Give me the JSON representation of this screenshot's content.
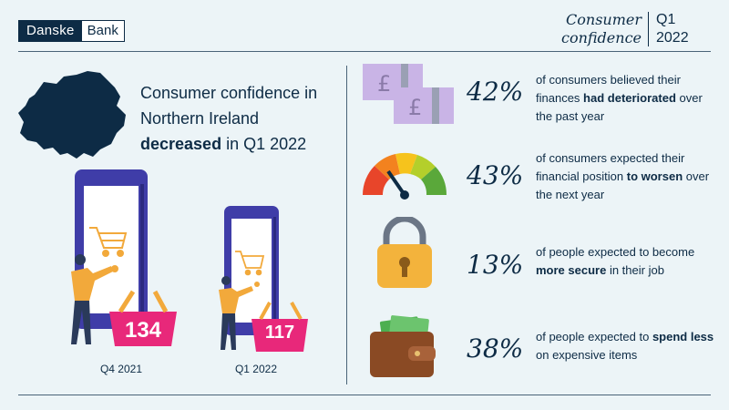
{
  "header": {
    "logo_left": "Danske",
    "logo_right": "Bank",
    "title_line1": "Consumer",
    "title_line2": "confidence",
    "period_line1": "Q1",
    "period_line2": "2022"
  },
  "headline": {
    "line1": "Consumer confidence in",
    "line2": "Northern Ireland",
    "bold": "decreased",
    "rest": " in Q1 2022"
  },
  "comparison": [
    {
      "period": "Q4 2021",
      "value": "134"
    },
    {
      "period": "Q1 2022",
      "value": "117"
    }
  ],
  "stats": [
    {
      "percent": "42%",
      "pre": "of consumers believed their finances ",
      "bold": "had deteriorated",
      "post": " over the past year",
      "icon": "pound-notes-icon"
    },
    {
      "percent": "43%",
      "pre": "of consumers expected their financial position ",
      "bold": "to worsen",
      "post": " over the next year",
      "icon": "gauge-icon"
    },
    {
      "percent": "13%",
      "pre": "of people expected to become ",
      "bold": "more secure",
      "post": " in their job",
      "icon": "padlock-icon"
    },
    {
      "percent": "38%",
      "pre": "of people expected to ",
      "bold": "spend less",
      "post": " on expensive items",
      "icon": "wallet-icon"
    }
  ],
  "colors": {
    "navy": "#0d2b45",
    "background": "#ecf4f7",
    "basket": "#e8287a",
    "phone": "#3f3da8",
    "notes": "#c9b4e6"
  }
}
